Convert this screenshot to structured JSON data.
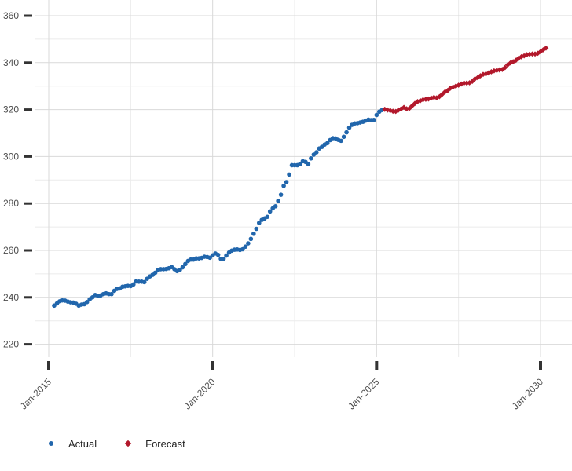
{
  "chart_data": {
    "type": "scatter",
    "title": "",
    "xlabel": "",
    "ylabel": "",
    "ylim": [
      214,
      366
    ],
    "yticks": [
      220,
      240,
      260,
      280,
      300,
      320,
      340,
      360
    ],
    "xticks": [
      "Jan-2015",
      "Jan-2020",
      "Jan-2025",
      "Jan-2030"
    ],
    "grid": true,
    "legend_position": "bottom-left",
    "series": [
      {
        "name": "Actual",
        "color": "#2166ac",
        "marker": "circle",
        "points": [
          [
            "2015-03",
            236.5
          ],
          [
            "2015-04",
            237.4
          ],
          [
            "2015-05",
            238.3
          ],
          [
            "2015-06",
            238.7
          ],
          [
            "2015-07",
            238.6
          ],
          [
            "2015-08",
            238.2
          ],
          [
            "2015-09",
            237.9
          ],
          [
            "2015-10",
            237.8
          ],
          [
            "2015-11",
            237.3
          ],
          [
            "2015-12",
            236.5
          ],
          [
            "2016-01",
            236.9
          ],
          [
            "2016-02",
            237.1
          ],
          [
            "2016-03",
            238.0
          ],
          [
            "2016-04",
            239.2
          ],
          [
            "2016-05",
            240.0
          ],
          [
            "2016-06",
            241.0
          ],
          [
            "2016-07",
            240.6
          ],
          [
            "2016-08",
            240.8
          ],
          [
            "2016-09",
            241.4
          ],
          [
            "2016-10",
            241.7
          ],
          [
            "2016-11",
            241.4
          ],
          [
            "2016-12",
            241.4
          ],
          [
            "2017-01",
            242.8
          ],
          [
            "2017-02",
            243.6
          ],
          [
            "2017-03",
            243.8
          ],
          [
            "2017-04",
            244.5
          ],
          [
            "2017-05",
            244.7
          ],
          [
            "2017-06",
            244.9
          ],
          [
            "2017-07",
            244.8
          ],
          [
            "2017-08",
            245.5
          ],
          [
            "2017-09",
            246.8
          ],
          [
            "2017-10",
            246.7
          ],
          [
            "2017-11",
            246.7
          ],
          [
            "2017-12",
            246.5
          ],
          [
            "2018-01",
            247.9
          ],
          [
            "2018-02",
            248.9
          ],
          [
            "2018-03",
            249.6
          ],
          [
            "2018-04",
            250.5
          ],
          [
            "2018-05",
            251.6
          ],
          [
            "2018-06",
            252.0
          ],
          [
            "2018-07",
            252.0
          ],
          [
            "2018-08",
            252.1
          ],
          [
            "2018-09",
            252.4
          ],
          [
            "2018-10",
            252.9
          ],
          [
            "2018-11",
            252.0
          ],
          [
            "2018-12",
            251.2
          ],
          [
            "2019-01",
            251.7
          ],
          [
            "2019-02",
            252.8
          ],
          [
            "2019-03",
            254.2
          ],
          [
            "2019-04",
            255.5
          ],
          [
            "2019-05",
            256.1
          ],
          [
            "2019-06",
            256.1
          ],
          [
            "2019-07",
            256.6
          ],
          [
            "2019-08",
            256.6
          ],
          [
            "2019-09",
            256.8
          ],
          [
            "2019-10",
            257.3
          ],
          [
            "2019-11",
            257.2
          ],
          [
            "2019-12",
            256.9
          ],
          [
            "2020-01",
            257.9
          ],
          [
            "2020-02",
            258.7
          ],
          [
            "2020-03",
            258.1
          ],
          [
            "2020-04",
            256.4
          ],
          [
            "2020-05",
            256.4
          ],
          [
            "2020-06",
            257.8
          ],
          [
            "2020-07",
            259.1
          ],
          [
            "2020-08",
            259.9
          ],
          [
            "2020-09",
            260.3
          ],
          [
            "2020-10",
            260.4
          ],
          [
            "2020-11",
            260.2
          ],
          [
            "2020-12",
            260.5
          ],
          [
            "2021-01",
            261.6
          ],
          [
            "2021-02",
            263.0
          ],
          [
            "2021-03",
            264.9
          ],
          [
            "2021-04",
            267.1
          ],
          [
            "2021-05",
            269.2
          ],
          [
            "2021-06",
            271.7
          ],
          [
            "2021-07",
            273.0
          ],
          [
            "2021-08",
            273.6
          ],
          [
            "2021-09",
            274.3
          ],
          [
            "2021-10",
            276.6
          ],
          [
            "2021-11",
            277.9
          ],
          [
            "2021-12",
            278.8
          ],
          [
            "2022-01",
            281.1
          ],
          [
            "2022-02",
            283.7
          ],
          [
            "2022-03",
            287.5
          ],
          [
            "2022-04",
            289.1
          ],
          [
            "2022-05",
            292.3
          ],
          [
            "2022-06",
            296.3
          ],
          [
            "2022-07",
            296.3
          ],
          [
            "2022-08",
            296.3
          ],
          [
            "2022-09",
            296.8
          ],
          [
            "2022-10",
            298.0
          ],
          [
            "2022-11",
            297.7
          ],
          [
            "2022-12",
            296.8
          ],
          [
            "2023-01",
            299.2
          ],
          [
            "2023-02",
            300.8
          ],
          [
            "2023-03",
            301.8
          ],
          [
            "2023-04",
            303.4
          ],
          [
            "2023-05",
            304.1
          ],
          [
            "2023-06",
            305.1
          ],
          [
            "2023-07",
            305.7
          ],
          [
            "2023-08",
            307.0
          ],
          [
            "2023-09",
            307.8
          ],
          [
            "2023-10",
            307.7
          ],
          [
            "2023-11",
            307.1
          ],
          [
            "2023-12",
            306.7
          ],
          [
            "2024-01",
            308.4
          ],
          [
            "2024-02",
            310.3
          ],
          [
            "2024-03",
            312.3
          ],
          [
            "2024-04",
            313.5
          ],
          [
            "2024-05",
            314.1
          ],
          [
            "2024-06",
            314.2
          ],
          [
            "2024-07",
            314.5
          ],
          [
            "2024-08",
            314.8
          ],
          [
            "2024-09",
            315.3
          ],
          [
            "2024-10",
            315.7
          ],
          [
            "2024-11",
            315.5
          ],
          [
            "2024-12",
            315.6
          ],
          [
            "2025-01",
            317.7
          ],
          [
            "2025-02",
            319.1
          ],
          [
            "2025-03",
            319.8
          ]
        ]
      },
      {
        "name": "Forecast",
        "color": "#b2182b",
        "marker": "diamond",
        "points": [
          [
            "2025-04",
            320.1
          ],
          [
            "2025-05",
            319.8
          ],
          [
            "2025-06",
            319.6
          ],
          [
            "2025-07",
            319.3
          ],
          [
            "2025-08",
            319.2
          ],
          [
            "2025-09",
            319.8
          ],
          [
            "2025-10",
            320.3
          ],
          [
            "2025-11",
            320.9
          ],
          [
            "2025-12",
            320.3
          ],
          [
            "2026-01",
            320.5
          ],
          [
            "2026-02",
            321.6
          ],
          [
            "2026-03",
            322.6
          ],
          [
            "2026-04",
            323.4
          ],
          [
            "2026-05",
            323.8
          ],
          [
            "2026-06",
            324.2
          ],
          [
            "2026-07",
            324.4
          ],
          [
            "2026-08",
            324.5
          ],
          [
            "2026-09",
            324.9
          ],
          [
            "2026-10",
            325.2
          ],
          [
            "2026-11",
            325.0
          ],
          [
            "2026-12",
            325.5
          ],
          [
            "2027-01",
            326.5
          ],
          [
            "2027-02",
            327.5
          ],
          [
            "2027-03",
            328.1
          ],
          [
            "2027-04",
            329.1
          ],
          [
            "2027-05",
            329.6
          ],
          [
            "2027-06",
            330.0
          ],
          [
            "2027-07",
            330.4
          ],
          [
            "2027-08",
            330.9
          ],
          [
            "2027-09",
            331.3
          ],
          [
            "2027-10",
            331.3
          ],
          [
            "2027-11",
            331.4
          ],
          [
            "2027-12",
            332.0
          ],
          [
            "2028-01",
            333.1
          ],
          [
            "2028-02",
            333.6
          ],
          [
            "2028-03",
            334.4
          ],
          [
            "2028-04",
            335.0
          ],
          [
            "2028-05",
            335.2
          ],
          [
            "2028-06",
            335.6
          ],
          [
            "2028-07",
            336.1
          ],
          [
            "2028-08",
            336.5
          ],
          [
            "2028-09",
            336.7
          ],
          [
            "2028-10",
            336.9
          ],
          [
            "2028-11",
            337.1
          ],
          [
            "2028-12",
            337.9
          ],
          [
            "2029-01",
            339.1
          ],
          [
            "2029-02",
            339.9
          ],
          [
            "2029-03",
            340.4
          ],
          [
            "2029-04",
            341.0
          ],
          [
            "2029-05",
            341.9
          ],
          [
            "2029-06",
            342.5
          ],
          [
            "2029-07",
            342.9
          ],
          [
            "2029-08",
            343.4
          ],
          [
            "2029-09",
            343.6
          ],
          [
            "2029-10",
            343.7
          ],
          [
            "2029-11",
            343.7
          ],
          [
            "2029-12",
            344.0
          ],
          [
            "2030-01",
            344.7
          ],
          [
            "2030-02",
            345.5
          ],
          [
            "2030-03",
            346.2
          ]
        ]
      }
    ]
  }
}
